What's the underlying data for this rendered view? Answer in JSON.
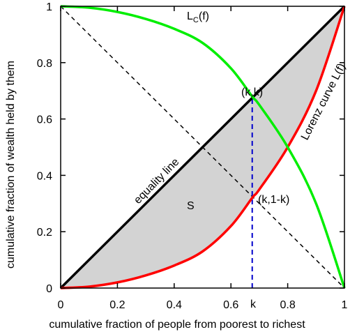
{
  "chart_data": {
    "type": "line",
    "xlabel": "cumulative fraction of people from poorest to richest",
    "ylabel": "cumulative fraction of wealth held by them",
    "xlim": [
      0,
      1
    ],
    "ylim": [
      0,
      1
    ],
    "x_ticks": [
      "0",
      "0.2",
      "0.4",
      "0.6",
      "0.8",
      "1"
    ],
    "y_ticks": [
      "0",
      "0.2",
      "0.4",
      "0.6",
      "0.8",
      "1"
    ],
    "grid": false,
    "k": 0.675,
    "colors": {
      "equality": "#000000",
      "lorenz": "#ff0000",
      "complementary": "#00ee00",
      "diagonal": "#000000",
      "k_line": "#0000cc",
      "shaded_area": "#d3d3d3"
    },
    "series": [
      {
        "name": "equality line",
        "x": [
          0,
          1
        ],
        "y": [
          0,
          1
        ]
      },
      {
        "name": "Lorenz curve L(f)",
        "x": [
          0,
          0.1,
          0.2,
          0.3,
          0.4,
          0.5,
          0.6,
          0.675,
          0.7,
          0.8,
          0.9,
          1.0
        ],
        "y": [
          0,
          0.005,
          0.02,
          0.045,
          0.08,
          0.13,
          0.22,
          0.32,
          0.35,
          0.5,
          0.7,
          1.0
        ]
      },
      {
        "name": "",
        "x": [
          0,
          0.1,
          0.2,
          0.3,
          0.4,
          0.5,
          0.6,
          0.675,
          0.7,
          0.8,
          0.9,
          1.0
        ],
        "y": [
          1.0,
          0.995,
          0.98,
          0.955,
          0.92,
          0.87,
          0.78,
          0.68,
          0.65,
          0.5,
          0.3,
          0
        ]
      },
      {
        "name": "",
        "x": [
          0,
          1
        ],
        "y": [
          1,
          0
        ]
      }
    ],
    "annotations": {
      "lc_label_main": "L",
      "lc_label_sub": "C",
      "lc_label_end": "(f)",
      "kk": "(k,k)",
      "k1k": "(k,1-k)",
      "lorenz": "Lorenz curve L(f)",
      "equality": "equality line",
      "area": "S",
      "k_tick": "k"
    }
  }
}
